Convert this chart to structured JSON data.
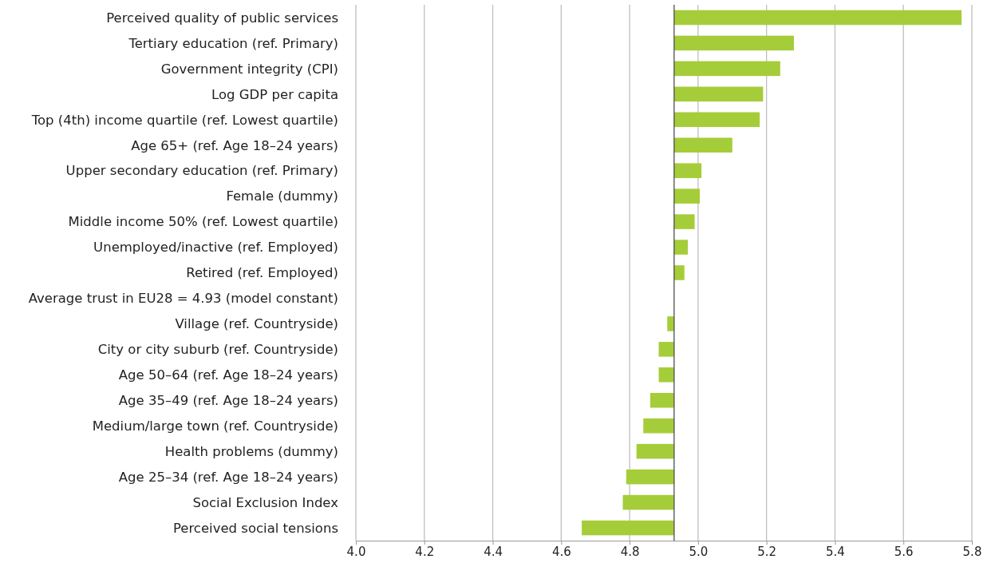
{
  "chart_data": {
    "type": "bar",
    "orientation": "horizontal",
    "categories": [
      "Perceived quality of public services",
      "Tertiary education (ref. Primary)",
      "Government integrity (CPI)",
      "Log GDP per capita",
      "Top (4th) income quartile (ref. Lowest quartile)",
      "Age 65+ (ref. Age 18–24 years)",
      "Upper secondary education (ref. Primary)",
      "Female (dummy)",
      "Middle income 50% (ref. Lowest quartile)",
      "Unemployed/inactive (ref. Employed)",
      "Retired (ref. Employed)",
      "Average trust in EU28 = 4.93 (model constant)",
      "Village (ref. Countryside)",
      "City or city suburb (ref. Countryside)",
      "Age 50–64 (ref. Age 18–24 years)",
      "Age 35–49 (ref. Age 18–24 years)",
      "Medium/large town (ref. Countryside)",
      "Health problems (dummy)",
      "Age 25–34 (ref. Age 18–24 years)",
      "Social Exclusion Index",
      "Perceived social tensions"
    ],
    "values": [
      0.84,
      0.35,
      0.31,
      0.26,
      0.25,
      0.17,
      0.08,
      0.075,
      0.06,
      0.04,
      0.03,
      null,
      -0.02,
      -0.045,
      -0.045,
      -0.07,
      -0.09,
      -0.11,
      -0.14,
      -0.15,
      -0.27
    ],
    "base": [
      4.93,
      4.93,
      4.93,
      4.93,
      4.93,
      4.93,
      4.93,
      4.93,
      4.93,
      4.93,
      4.93,
      null,
      4.93,
      4.93,
      4.93,
      4.93,
      4.93,
      4.93,
      4.93,
      4.93,
      4.93
    ],
    "color": "#a5cd39",
    "xlim": [
      4.0,
      5.8
    ],
    "xticks": [
      {
        "value": 4.0,
        "label": "4.0"
      },
      4.2,
      4.4,
      4.6,
      4.8,
      {
        "value": 5.0,
        "label": "5.0"
      },
      5.2,
      5.4,
      5.6,
      5.8
    ],
    "grid": "x",
    "ref_lines": [
      {
        "axis": "x",
        "value": 4.93,
        "color": "#404040"
      }
    ]
  }
}
